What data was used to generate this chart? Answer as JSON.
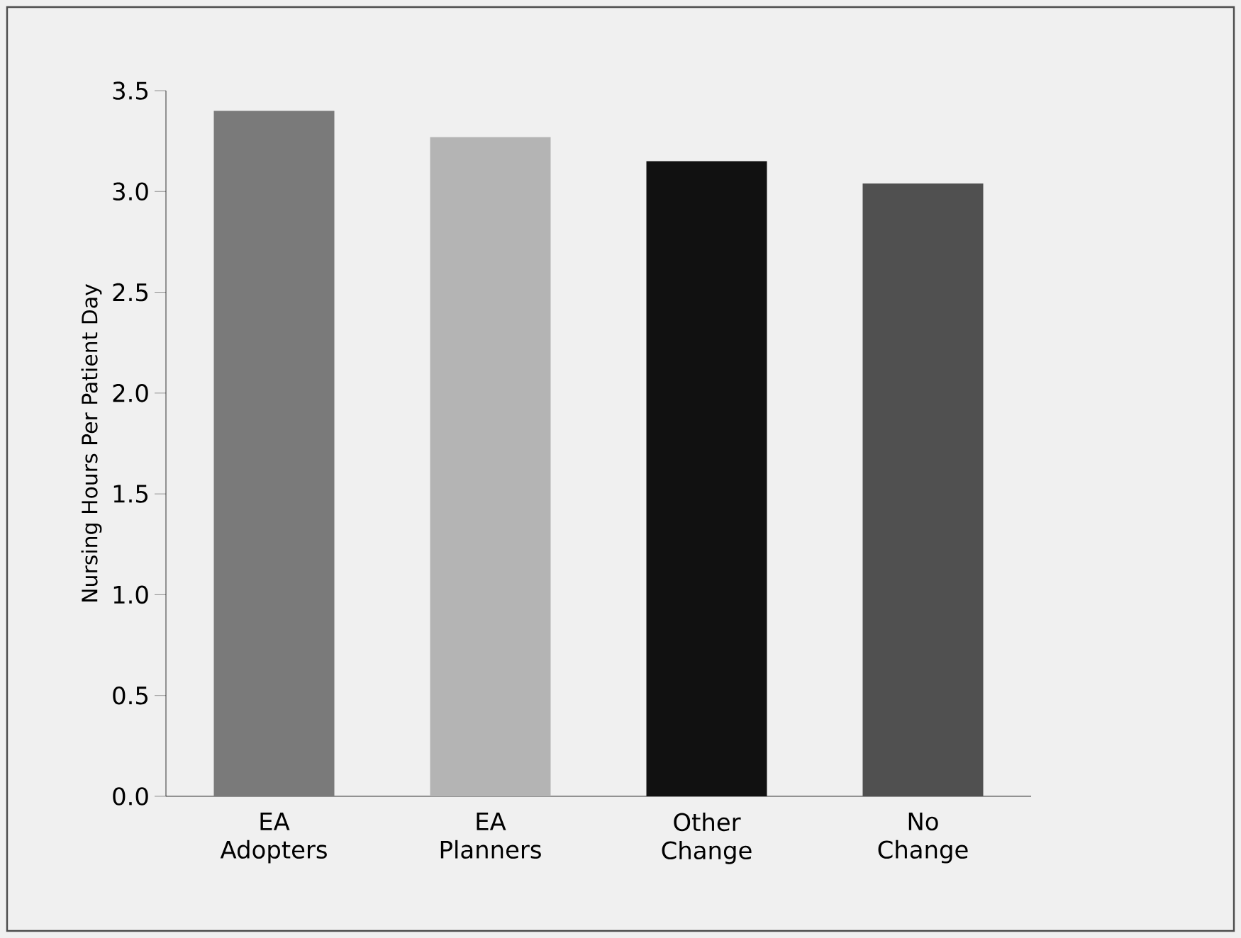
{
  "chart_data": {
    "type": "bar",
    "ylabel": "Nursing Hours Per Patient Day",
    "categories": [
      "EA Adopters",
      "EA Planners",
      "Other Change",
      "No Change"
    ],
    "values": [
      3.4,
      3.27,
      3.15,
      3.04
    ],
    "colors": [
      "#7a7a7a",
      "#b4b4b4",
      "#111111",
      "#505050"
    ],
    "ylim": [
      0,
      3.5
    ],
    "yticks": [
      {
        "value": 0,
        "label": "0.0"
      },
      {
        "value": 0.5,
        "label": "0.5"
      },
      {
        "value": 1,
        "label": "1.0"
      },
      {
        "value": 1.5,
        "label": "1.5"
      },
      {
        "value": 2,
        "label": "2.0"
      },
      {
        "value": 2.5,
        "label": "2.5"
      },
      {
        "value": 3,
        "label": "3.0"
      },
      {
        "value": 3.5,
        "label": "3.5"
      }
    ],
    "grid": false
  }
}
